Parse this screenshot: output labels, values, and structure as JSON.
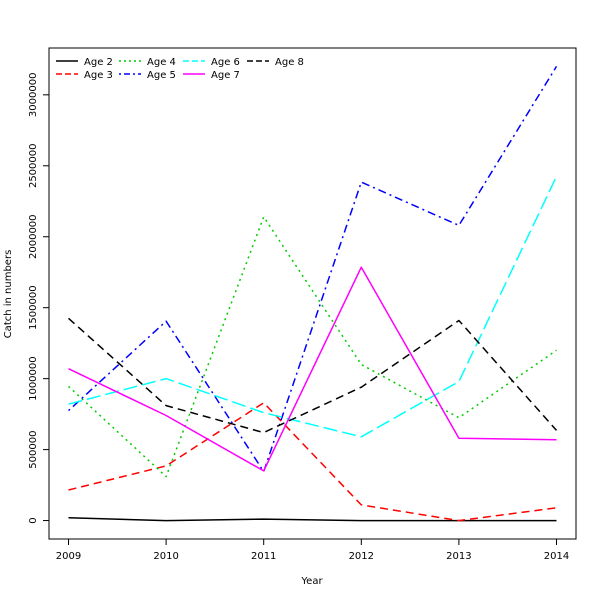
{
  "chart_data": {
    "type": "line",
    "title": "",
    "xlabel": "Year",
    "ylabel": "Catch in numbers",
    "x": [
      2009,
      2010,
      2011,
      2012,
      2013,
      2014
    ],
    "x_ticks": [
      "2009",
      "2010",
      "2011",
      "2012",
      "2013",
      "2014"
    ],
    "y_ticks": [
      0,
      500000,
      1000000,
      1500000,
      2000000,
      2500000,
      3000000
    ],
    "y_tick_labels": [
      "0",
      "500000",
      "1000000",
      "1500000",
      "2000000",
      "2500000",
      "3000000"
    ],
    "xlim": [
      2008.8,
      2014.2
    ],
    "ylim": [
      -130000,
      3330000
    ],
    "grid": false,
    "legend_position": "top-left",
    "series": [
      {
        "name": "Age 2",
        "color": "#000000",
        "dash": "solid",
        "values": [
          20000,
          0,
          10000,
          0,
          0,
          0
        ]
      },
      {
        "name": "Age 3",
        "color": "#ff0000",
        "dash": "dashed",
        "values": [
          215000,
          385000,
          830000,
          110000,
          0,
          90000
        ]
      },
      {
        "name": "Age 4",
        "color": "#00cd00",
        "dash": "dotted",
        "values": [
          945000,
          310000,
          2140000,
          1100000,
          725000,
          1200000
        ]
      },
      {
        "name": "Age 5",
        "color": "#0000ff",
        "dash": "dotdash",
        "values": [
          775000,
          1405000,
          345000,
          2385000,
          2080000,
          3200000
        ]
      },
      {
        "name": "Age 6",
        "color": "#00ffff",
        "dash": "longdash",
        "values": [
          820000,
          1000000,
          760000,
          590000,
          980000,
          2425000
        ]
      },
      {
        "name": "Age 7",
        "color": "#ff00ff",
        "dash": "solid",
        "values": [
          1070000,
          740000,
          350000,
          1785000,
          580000,
          570000
        ]
      },
      {
        "name": "Age 8",
        "color": "#000000",
        "dash": "dashed",
        "values": [
          1425000,
          810000,
          620000,
          940000,
          1410000,
          635000
        ]
      }
    ]
  }
}
